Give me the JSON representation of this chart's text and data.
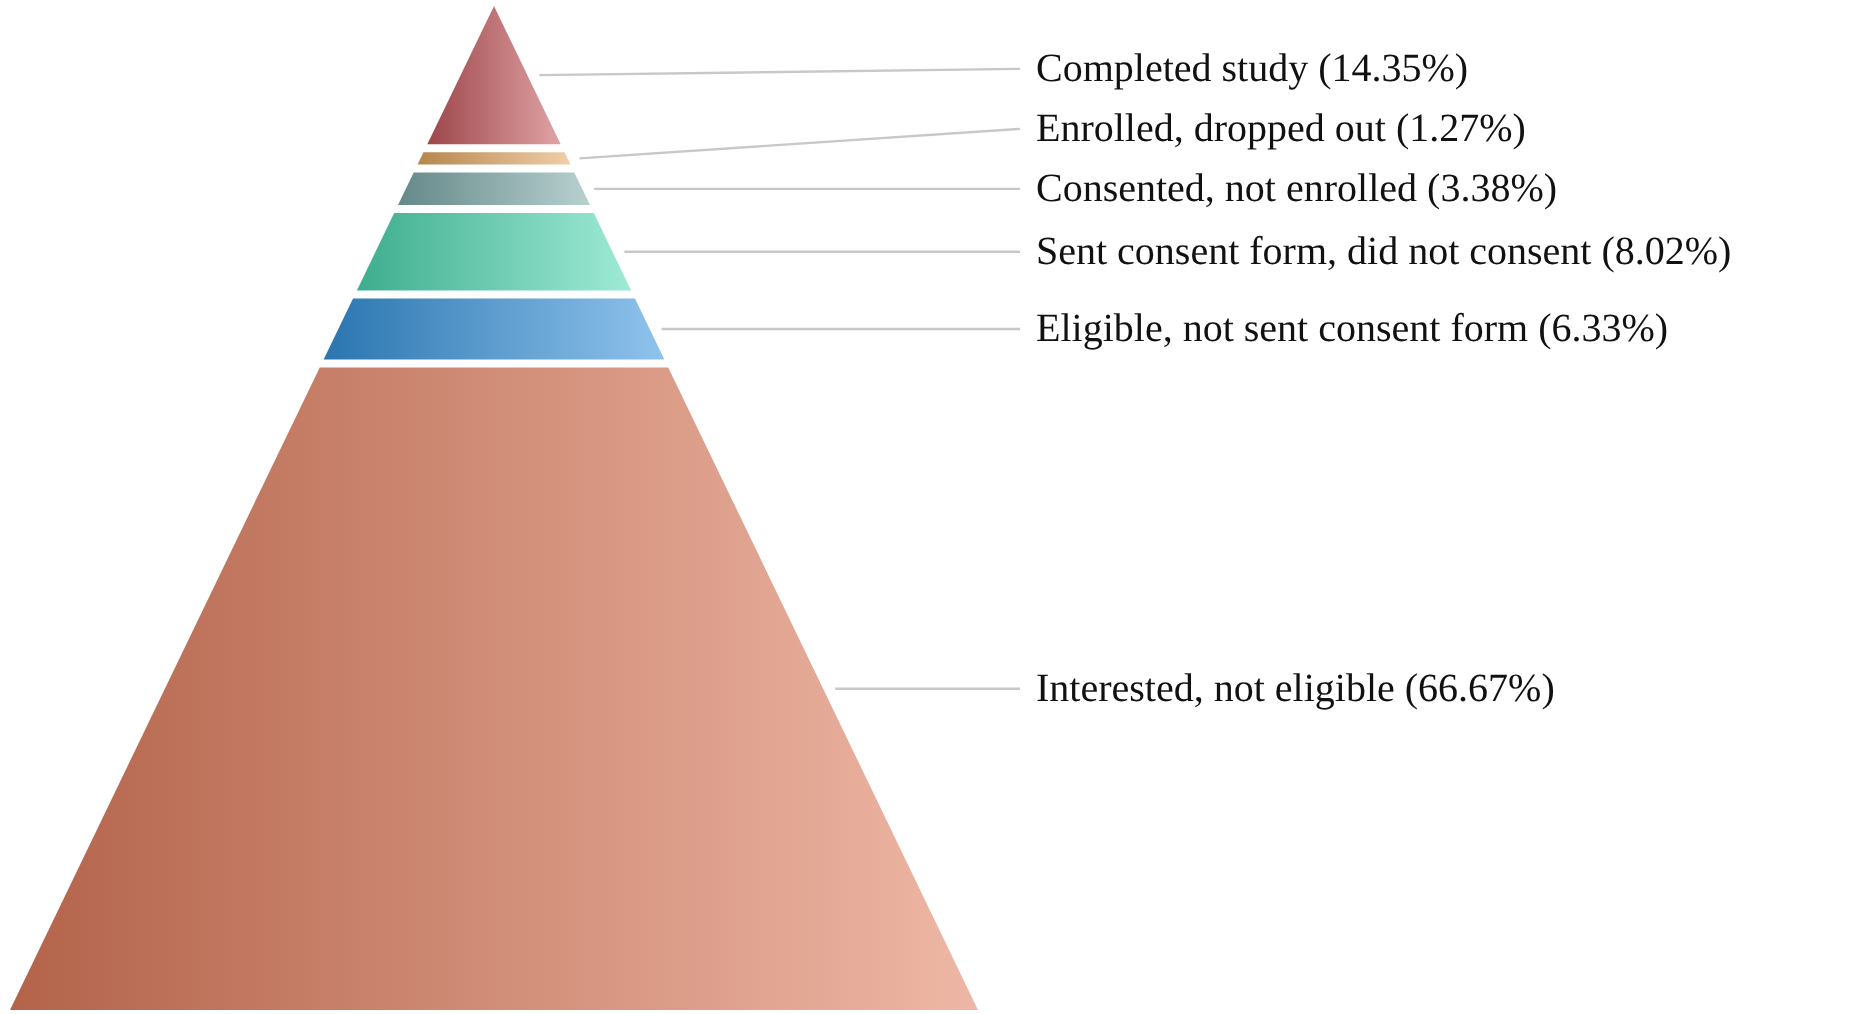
{
  "chart_data": {
    "type": "other",
    "categories": [
      "Completed study",
      "Enrolled, dropped out",
      "Consented, not enrolled",
      "Sent consent form, did not consent",
      "Eligible, not sent consent form",
      "Interested, not eligible"
    ],
    "values": [
      14.35,
      1.27,
      3.38,
      8.02,
      6.33,
      66.67
    ],
    "value_labels": [
      "(14.35%)",
      "(1.27%)",
      "(3.38%)",
      "(8.02%)",
      "(6.33%)",
      "(66.67%)"
    ],
    "colors": [
      "#c4585c",
      "#e4a860",
      "#7eaaaa",
      "#4ed8b2",
      "#3492dc",
      "#e07c5c"
    ]
  }
}
